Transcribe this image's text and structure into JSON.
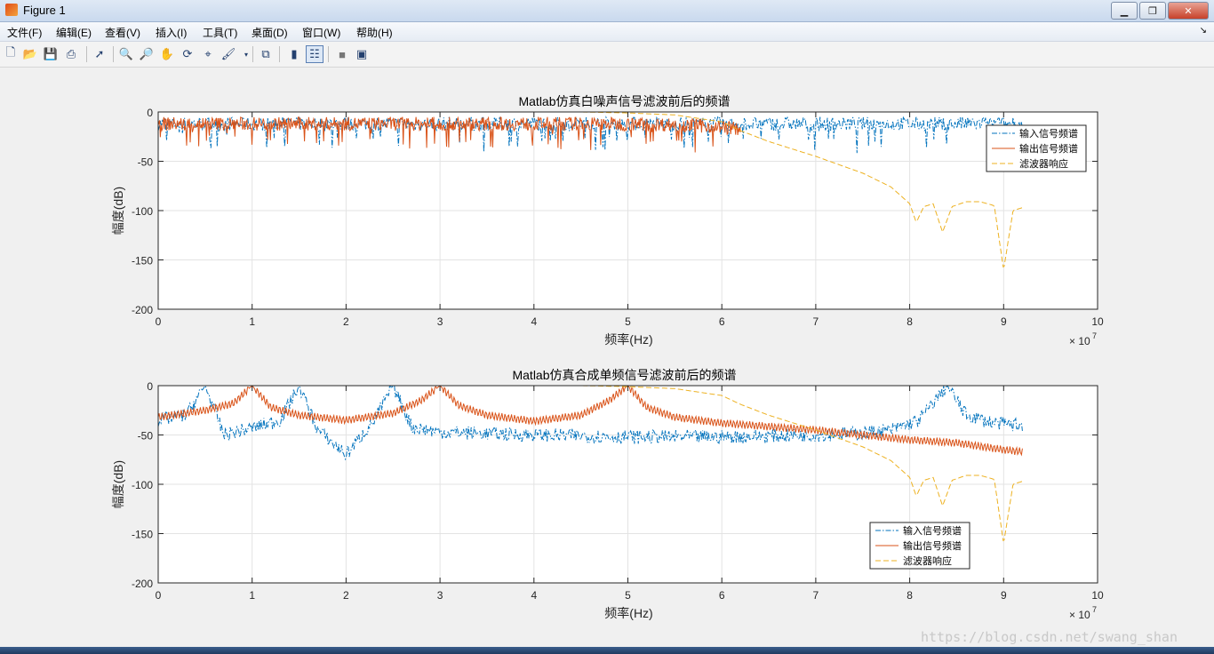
{
  "window": {
    "title": "Figure 1"
  },
  "menu": [
    "文件(F)",
    "编辑(E)",
    "查看(V)",
    "插入(I)",
    "工具(T)",
    "桌面(D)",
    "窗口(W)",
    "帮助(H)"
  ],
  "toolbar_icons": [
    "new-file-icon",
    "open-folder-icon",
    "save-icon",
    "print-icon",
    "select-arrow-icon",
    "zoom-in-icon",
    "zoom-out-icon",
    "pan-hand-icon",
    "rotate-3d-icon",
    "data-cursor-icon",
    "brush-icon",
    "brush-dropdown-icon",
    "link-plot-icon",
    "colorbar-icon",
    "legend-icon",
    "hide-tools-icon",
    "dock-icon"
  ],
  "watermark": "https://blog.csdn.net/swang_shan",
  "chart_data": [
    {
      "type": "line",
      "title": "Matlab仿真白噪声信号滤波前后的频谱",
      "xlabel": "频率(Hz)",
      "ylabel": "幅度(dB)",
      "x_multiplier": "×10^7",
      "x_exponent_label": "× 10",
      "x_exponent_sup": "7",
      "xlim": [
        0,
        100000000
      ],
      "ylim": [
        -200,
        0
      ],
      "xticks": [
        0,
        1,
        2,
        3,
        4,
        5,
        6,
        7,
        8,
        9,
        10
      ],
      "yticks": [
        0,
        -50,
        -100,
        -150,
        -200
      ],
      "grid": true,
      "legend_position": "top-right",
      "series": [
        {
          "name": "输入信号频谱",
          "style": "dash-dot",
          "color": "#0072bd",
          "kind": "noise",
          "base": -12,
          "amp": 7,
          "xend": 92000000
        },
        {
          "name": "输出信号频谱",
          "style": "solid",
          "color": "#d95319",
          "kind": "noise-filtered",
          "base": -12,
          "amp": 7,
          "xend": 62000000
        },
        {
          "name": "滤波器响应",
          "style": "dashed",
          "color": "#edb120",
          "kind": "filter",
          "x": [
            0,
            10000000,
            20000000,
            30000000,
            40000000,
            45000000,
            50000000,
            55000000,
            60000000,
            62000000,
            65000000,
            70000000,
            75000000,
            78000000,
            80000000,
            80700000,
            81500000,
            82500000,
            83500000,
            84500000,
            86000000,
            87500000,
            89000000,
            90000000,
            91000000,
            92000000
          ],
          "y": [
            0,
            0,
            0,
            0,
            0,
            0,
            -1,
            -3,
            -10,
            -19,
            -30,
            -45,
            -62,
            -76,
            -93,
            -112,
            -96,
            -93,
            -122,
            -96,
            -91,
            -91,
            -95,
            -160,
            -100,
            -97
          ]
        }
      ]
    },
    {
      "type": "line",
      "title": "Matlab仿真合成单频信号滤波前后的频谱",
      "xlabel": "频率(Hz)",
      "ylabel": "幅度(dB)",
      "x_multiplier": "×10^7",
      "x_exponent_label": "× 10",
      "x_exponent_sup": "7",
      "xlim": [
        0,
        100000000
      ],
      "ylim": [
        -200,
        0
      ],
      "xticks": [
        0,
        1,
        2,
        3,
        4,
        5,
        6,
        7,
        8,
        9,
        10
      ],
      "yticks": [
        0,
        -50,
        -100,
        -150,
        -200
      ],
      "grid": true,
      "legend_position": "bottom-right",
      "series": [
        {
          "name": "输入信号频谱",
          "style": "dash-dot",
          "color": "#0072bd",
          "kind": "tones",
          "x": [
            0,
            3000000,
            5000000,
            7000000,
            10000000,
            13000000,
            15000000,
            17000000,
            20000000,
            23000000,
            25000000,
            27000000,
            30000000,
            40000000,
            50000000,
            60000000,
            70000000,
            75000000,
            78000000,
            81000000,
            84000000,
            86000000,
            89000000,
            92000000
          ],
          "y": [
            -35,
            -30,
            0,
            -50,
            -43,
            -35,
            0,
            -45,
            -70,
            -35,
            0,
            -42,
            -47,
            -50,
            -52,
            -52,
            -50,
            -48,
            -45,
            -35,
            0,
            -30,
            -38,
            -40
          ]
        },
        {
          "name": "输出信号频谱",
          "style": "solid",
          "color": "#d95319",
          "kind": "tones",
          "x": [
            0,
            5000000,
            8000000,
            10000000,
            12000000,
            15000000,
            20000000,
            25000000,
            28000000,
            30000000,
            32000000,
            35000000,
            40000000,
            45000000,
            48000000,
            50000000,
            52000000,
            55000000,
            60000000,
            70000000,
            80000000,
            85000000,
            90000000,
            92000000
          ],
          "y": [
            -32,
            -25,
            -18,
            0,
            -22,
            -30,
            -35,
            -28,
            -15,
            0,
            -20,
            -30,
            -36,
            -30,
            -15,
            0,
            -22,
            -32,
            -38,
            -45,
            -55,
            -58,
            -65,
            -67
          ]
        },
        {
          "name": "滤波器响应",
          "style": "dashed",
          "color": "#edb120",
          "kind": "filter",
          "x": [
            0,
            10000000,
            20000000,
            30000000,
            40000000,
            45000000,
            50000000,
            55000000,
            60000000,
            62000000,
            65000000,
            70000000,
            75000000,
            78000000,
            80000000,
            80700000,
            81500000,
            82500000,
            83500000,
            84500000,
            86000000,
            87500000,
            89000000,
            90000000,
            91000000,
            92000000
          ],
          "y": [
            0,
            0,
            0,
            0,
            0,
            0,
            -1,
            -3,
            -10,
            -19,
            -30,
            -45,
            -62,
            -76,
            -93,
            -112,
            -96,
            -93,
            -122,
            -96,
            -91,
            -91,
            -95,
            -160,
            -100,
            -97
          ]
        }
      ]
    }
  ]
}
